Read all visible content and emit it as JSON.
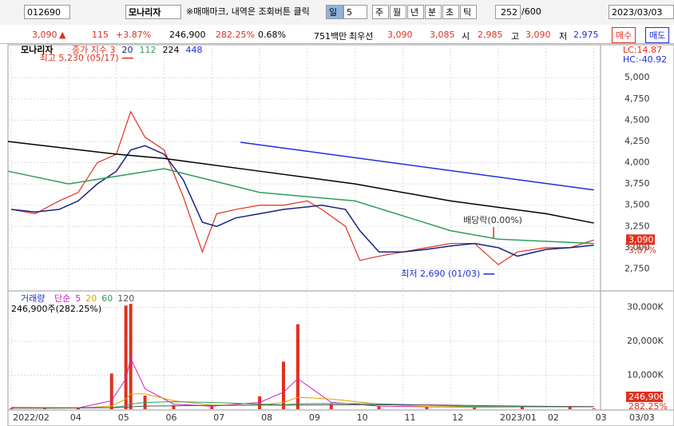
{
  "toolbar": {
    "code": "012690",
    "name": "모나리자",
    "notice": "※매매마크, 내역은 조회버튼 클릭",
    "period": "일",
    "period_n": "5",
    "tabs": [
      "주",
      "월",
      "년",
      "분",
      "초",
      "틱"
    ],
    "count": "252",
    "max": "/600",
    "date": "2023/03/03"
  },
  "quote": {
    "price": "3,090",
    "arrow": "▲",
    "change": "115",
    "rate": "+3.87%",
    "volume": "246,900",
    "volume_rate": "282.25%",
    "turnover": "0.68%",
    "amount": "751백만",
    "best_label": "최우선",
    "ask": "3,090",
    "bid": "3,085",
    "open_label": "시",
    "open": "2,985",
    "high_label": "고",
    "high": "3,090",
    "low_label": "저",
    "low": "2,975",
    "buy": "매수",
    "sell": "매도"
  },
  "chart_data": [
    {
      "type": "line",
      "legend_title": "모나리자",
      "lc": "LC:14.87",
      "hc": "HC:-40.92",
      "last": {
        "value": 3090,
        "label": "3,090"
      },
      "last_rate": "3,87%",
      "xlim": [
        1.73,
        14.14
      ],
      "ylim": [
        2510,
        5350
      ],
      "xticks": [
        {
          "value": 1.8,
          "label": "2022/02"
        },
        {
          "value": 3,
          "label": "04"
        },
        {
          "value": 4,
          "label": "05"
        },
        {
          "value": 5,
          "label": "06"
        },
        {
          "value": 6,
          "label": "07"
        },
        {
          "value": 7,
          "label": "08"
        },
        {
          "value": 8,
          "label": "09"
        },
        {
          "value": 9,
          "label": "10"
        },
        {
          "value": 10,
          "label": "11"
        },
        {
          "value": 11,
          "label": "12"
        },
        {
          "value": 12,
          "label": "2023/01"
        },
        {
          "value": 13,
          "label": "02"
        },
        {
          "value": 14,
          "label": "03"
        }
      ],
      "date_end": "03/03",
      "yticks": [
        {
          "value": 2750,
          "label": "2,750"
        },
        {
          "value": 3000,
          "label": "3,000"
        },
        {
          "value": 3250,
          "label": "3,250"
        },
        {
          "value": 3500,
          "label": "3,500"
        },
        {
          "value": 3750,
          "label": "3,750"
        },
        {
          "value": 4000,
          "label": "4,000"
        },
        {
          "value": 4250,
          "label": "4,250"
        },
        {
          "value": 4500,
          "label": "4,500"
        },
        {
          "value": 4750,
          "label": "4,750"
        },
        {
          "value": 5000,
          "label": "5,000"
        }
      ],
      "grid": true,
      "series": [
        {
          "name": "종가 지수 3",
          "color": "#e0301e",
          "x": [
            1.8,
            2.3,
            2.8,
            3.2,
            3.6,
            4.0,
            4.3,
            4.6,
            5.0,
            5.4,
            5.8,
            6.1,
            6.5,
            7.0,
            7.5,
            8.0,
            8.3,
            8.8,
            9.1,
            9.5,
            10.0,
            10.5,
            11.0,
            11.5,
            12.0,
            12.4,
            13.0,
            13.5,
            14.0
          ],
          "values": [
            3450,
            3400,
            3550,
            3650,
            4000,
            4100,
            4600,
            4300,
            4150,
            3600,
            2950,
            3400,
            3450,
            3500,
            3500,
            3550,
            3450,
            3250,
            2850,
            2900,
            2950,
            3000,
            3050,
            3050,
            2800,
            2950,
            3000,
            3000,
            3090
          ]
        },
        {
          "name": "20",
          "color": "#1a237e",
          "x": [
            1.8,
            2.3,
            2.8,
            3.2,
            3.6,
            4.0,
            4.3,
            4.6,
            5.0,
            5.4,
            5.8,
            6.1,
            6.5,
            7.0,
            7.5,
            8.0,
            8.3,
            8.8,
            9.1,
            9.5,
            10.0,
            10.5,
            11.0,
            11.5,
            12.0,
            12.4,
            13.0,
            13.5,
            14.0
          ],
          "values": [
            3450,
            3420,
            3450,
            3550,
            3750,
            3900,
            4150,
            4200,
            4100,
            3800,
            3300,
            3250,
            3350,
            3400,
            3450,
            3480,
            3500,
            3450,
            3200,
            2950,
            2950,
            2980,
            3020,
            3050,
            3000,
            2900,
            2980,
            3000,
            3030
          ]
        },
        {
          "name": "112",
          "color": "#2e9e5b",
          "x": [
            1.73,
            3,
            5,
            7,
            9,
            11,
            12,
            14
          ],
          "values": [
            3900,
            3750,
            3930,
            3650,
            3550,
            3200,
            3100,
            3050
          ]
        },
        {
          "name": "224",
          "color": "#000000",
          "x": [
            1.73,
            4,
            5,
            7,
            9,
            11,
            13,
            14
          ],
          "values": [
            4250,
            4100,
            4050,
            3900,
            3750,
            3550,
            3400,
            3290
          ]
        },
        {
          "name": "448",
          "color": "#1f2fd8",
          "x": [
            6.6,
            14
          ],
          "values": [
            4240,
            3680
          ]
        }
      ],
      "annotations": [
        {
          "label": "최고 5,230 (05/17)",
          "value": 5230,
          "x": 4.35,
          "side": "left"
        },
        {
          "label": "최저 2,690 (01/03)",
          "value": 2690,
          "x": 11.92,
          "side": "left"
        },
        {
          "label": "배당락(0.00%)",
          "value": 3110,
          "x": 11.9,
          "side": "up"
        }
      ]
    },
    {
      "type": "bar",
      "legend_title": "거래량",
      "legend_prefix": "단순",
      "current": "246,900주(282.25%)",
      "last_label": "246,900",
      "last_rate": "282.25%",
      "xlim": [
        1.73,
        14.14
      ],
      "ylim": [
        0,
        34100
      ],
      "yticks": [
        {
          "value": 10000,
          "label": "10,000K"
        },
        {
          "value": 20000,
          "label": "20,000K"
        },
        {
          "value": 30000,
          "label": "30,000K"
        }
      ],
      "x": [
        1.8,
        2.5,
        3.2,
        3.9,
        4.2,
        4.3,
        4.6,
        5.2,
        6.0,
        7.0,
        7.5,
        7.8,
        8.5,
        9.5,
        10.5,
        11.5,
        12.5,
        13.5,
        14.0
      ],
      "series": [
        {
          "name": "거래량",
          "color": "#e0301e",
          "values": [
            300,
            250,
            400,
            10500,
            30500,
            31000,
            4000,
            1200,
            800,
            3800,
            14000,
            25000,
            1500,
            900,
            700,
            600,
            800,
            900,
            246.9
          ]
        },
        {
          "name": "5",
          "color": "#d020c0",
          "values": [
            300,
            280,
            350,
            2500,
            9000,
            15000,
            6000,
            1500,
            900,
            2000,
            5000,
            9000,
            2000,
            900,
            700,
            600,
            700,
            800,
            700
          ]
        },
        {
          "name": "20",
          "color": "#e0a000",
          "values": [
            350,
            300,
            350,
            900,
            3000,
            4500,
            4500,
            2500,
            1200,
            1200,
            2000,
            3500,
            3000,
            1500,
            800,
            650,
            700,
            750,
            720
          ]
        },
        {
          "name": "60",
          "color": "#2e9e5b",
          "values": [
            400,
            380,
            380,
            500,
            1000,
            1500,
            2000,
            2200,
            2000,
            1500,
            1300,
            1600,
            1700,
            1600,
            1200,
            800,
            700,
            700,
            700
          ]
        },
        {
          "name": "120",
          "color": "#555555",
          "values": [
            500,
            450,
            420,
            450,
            550,
            700,
            900,
            1000,
            1100,
            1200,
            1200,
            1200,
            1300,
            1300,
            1300,
            1100,
            900,
            800,
            750
          ]
        }
      ]
    }
  ]
}
